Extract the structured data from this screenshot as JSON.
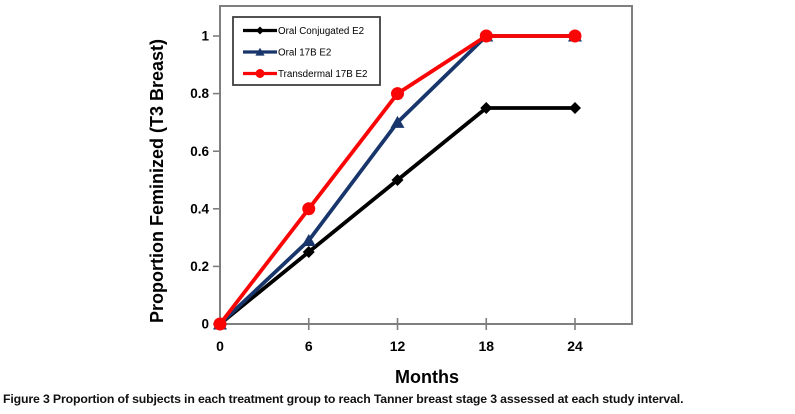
{
  "caption": {
    "label": "Figure 3",
    "text": "Proportion of subjects in each treatment group to reach Tanner breast stage 3 assessed at each study interval."
  },
  "chart_data": {
    "type": "line",
    "title": "",
    "xlabel": "Months",
    "ylabel": "Proportion Feminized (T3 Breast)",
    "x": [
      0,
      6,
      12,
      18,
      24
    ],
    "x_ticks": [
      0,
      6,
      12,
      18,
      24
    ],
    "x_tick_labels": [
      "0",
      "6",
      "12",
      "18",
      "24"
    ],
    "y_ticks": [
      0,
      0.2,
      0.4,
      0.6,
      0.8,
      1
    ],
    "y_tick_labels": [
      "0",
      "0.2",
      "0.4",
      "0.6",
      "0.8",
      "1"
    ],
    "xlim": [
      0,
      28
    ],
    "ylim": [
      0,
      1.1
    ],
    "grid": false,
    "legend_position": "upper-left-inside",
    "axis_color": "#7F7F7F",
    "legend_border_color": "#3F3F3F",
    "series": [
      {
        "name": "Oral Conjugated E2",
        "color": "#000000",
        "marker": "diamond",
        "values": [
          0,
          0.25,
          0.5,
          0.75,
          0.75
        ]
      },
      {
        "name": "Oral 17B E2",
        "color": "#18366B",
        "marker": "triangle",
        "values": [
          0,
          0.29,
          0.7,
          1,
          1
        ]
      },
      {
        "name": "Transdermal 17B E2",
        "color": "#F90505",
        "marker": "circle",
        "values": [
          0,
          0.4,
          0.8,
          1,
          1
        ]
      }
    ]
  }
}
